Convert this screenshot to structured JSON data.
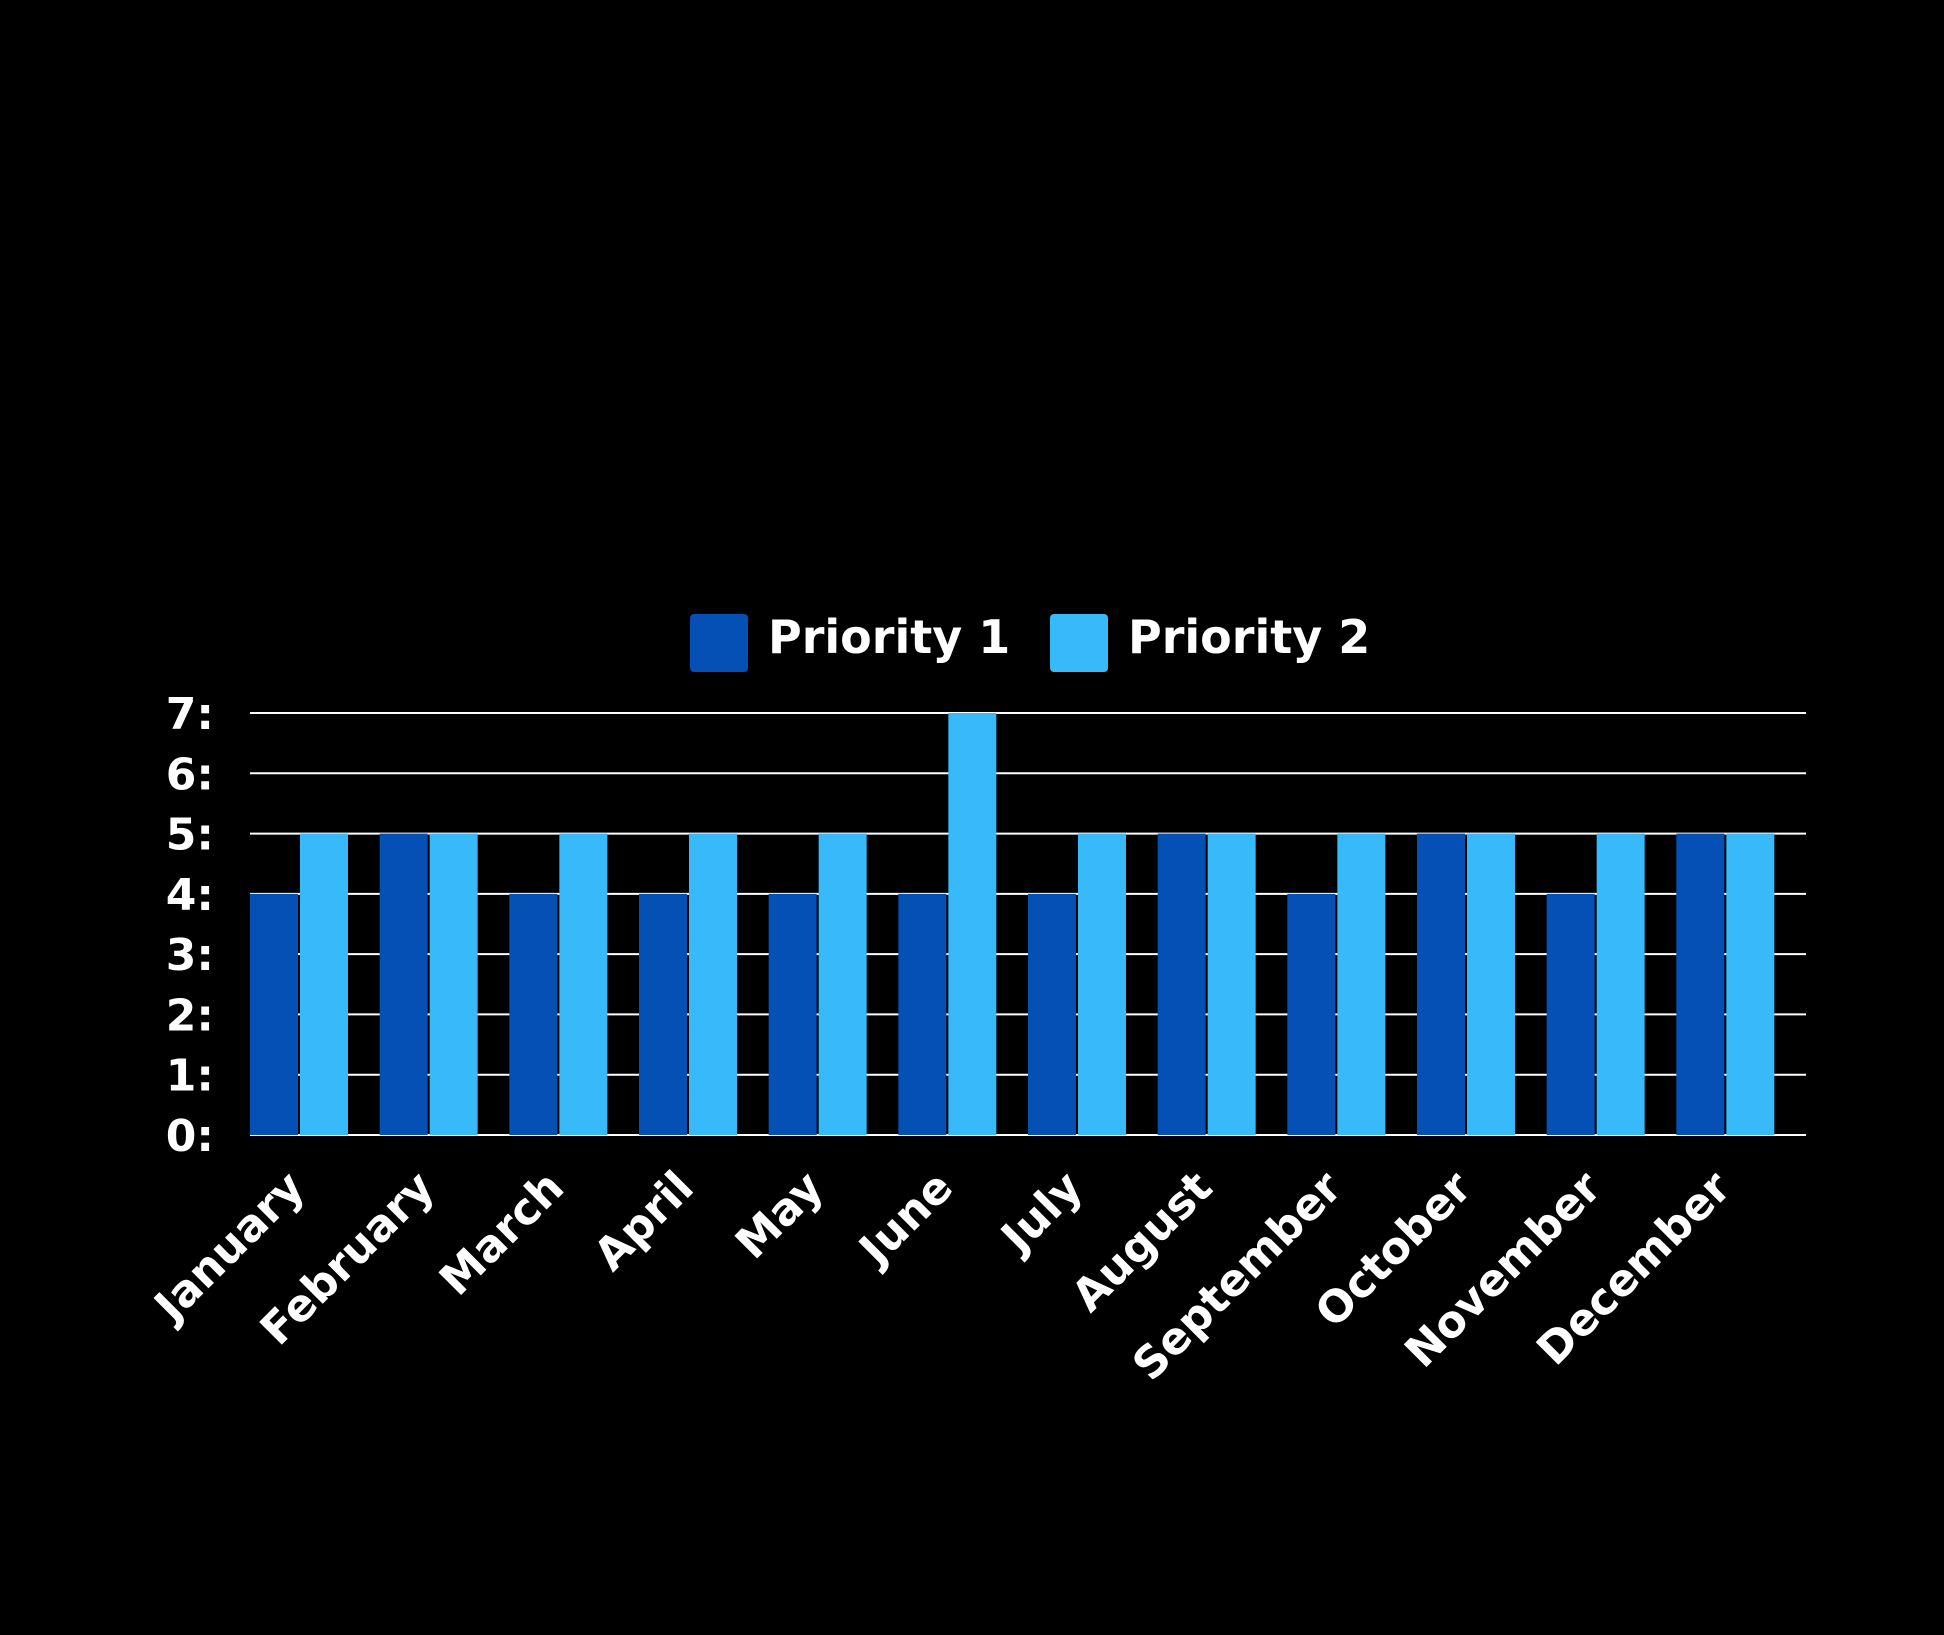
{
  "chart_data": {
    "type": "bar",
    "title": "",
    "xlabel": "",
    "ylabel": "",
    "categories": [
      "January",
      "February",
      "March",
      "April",
      "May",
      "June",
      "July",
      "August",
      "September",
      "October",
      "November",
      "December"
    ],
    "series": [
      {
        "name": "Priority 1",
        "color": "#0550B4",
        "values": [
          4,
          5,
          4,
          4,
          4,
          4,
          4,
          5,
          4,
          5,
          4,
          5
        ]
      },
      {
        "name": "Priority 2",
        "color": "#37B9FA",
        "values": [
          5,
          5,
          5,
          5,
          5,
          7,
          5,
          5,
          5,
          5,
          5,
          5
        ]
      }
    ],
    "yticks": [
      "0:",
      "1:",
      "2:",
      "3:",
      "4:",
      "5:",
      "6:",
      "7:"
    ],
    "ylim": [
      0,
      7
    ],
    "grid": true,
    "legend_position": "top-center",
    "background": "#000000",
    "gridline_color": "#ffffff"
  }
}
